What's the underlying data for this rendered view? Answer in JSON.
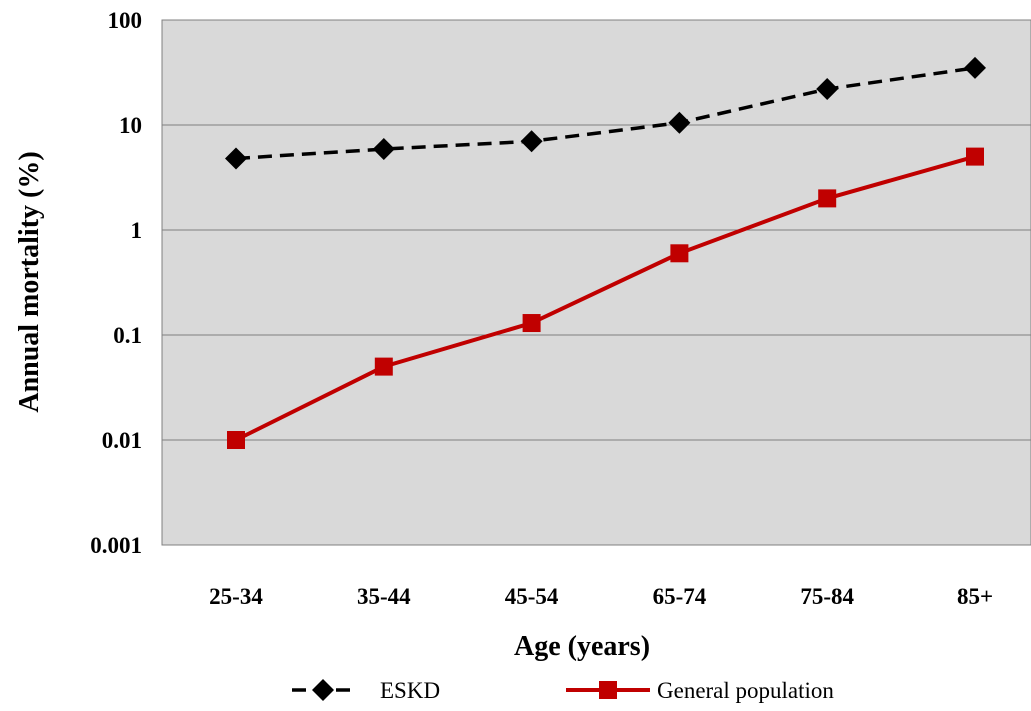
{
  "chart_data": {
    "type": "line",
    "title": "",
    "xlabel": "Age (years)",
    "ylabel": "Annual mortality  (%)",
    "yscale": "log",
    "ylim": [
      0.001,
      100
    ],
    "yticks": [
      "0.001",
      "0.01",
      "0.1",
      "1",
      "10",
      "100"
    ],
    "categories": [
      "25-34",
      "35-44",
      "45-54",
      "65-74",
      "75-84",
      "85+"
    ],
    "grid": true,
    "legend_position": "bottom",
    "series": [
      {
        "name": "ESKD",
        "values": [
          4.8,
          5.9,
          7,
          10.5,
          22,
          35
        ],
        "color": "#000000",
        "line_style": "dashed",
        "marker": "diamond"
      },
      {
        "name": "General population",
        "values": [
          0.01,
          0.05,
          0.13,
          0.6,
          2,
          5
        ],
        "color": "#c00000",
        "line_style": "solid",
        "marker": "square"
      }
    ],
    "plot_background": "#d9d9d9"
  }
}
